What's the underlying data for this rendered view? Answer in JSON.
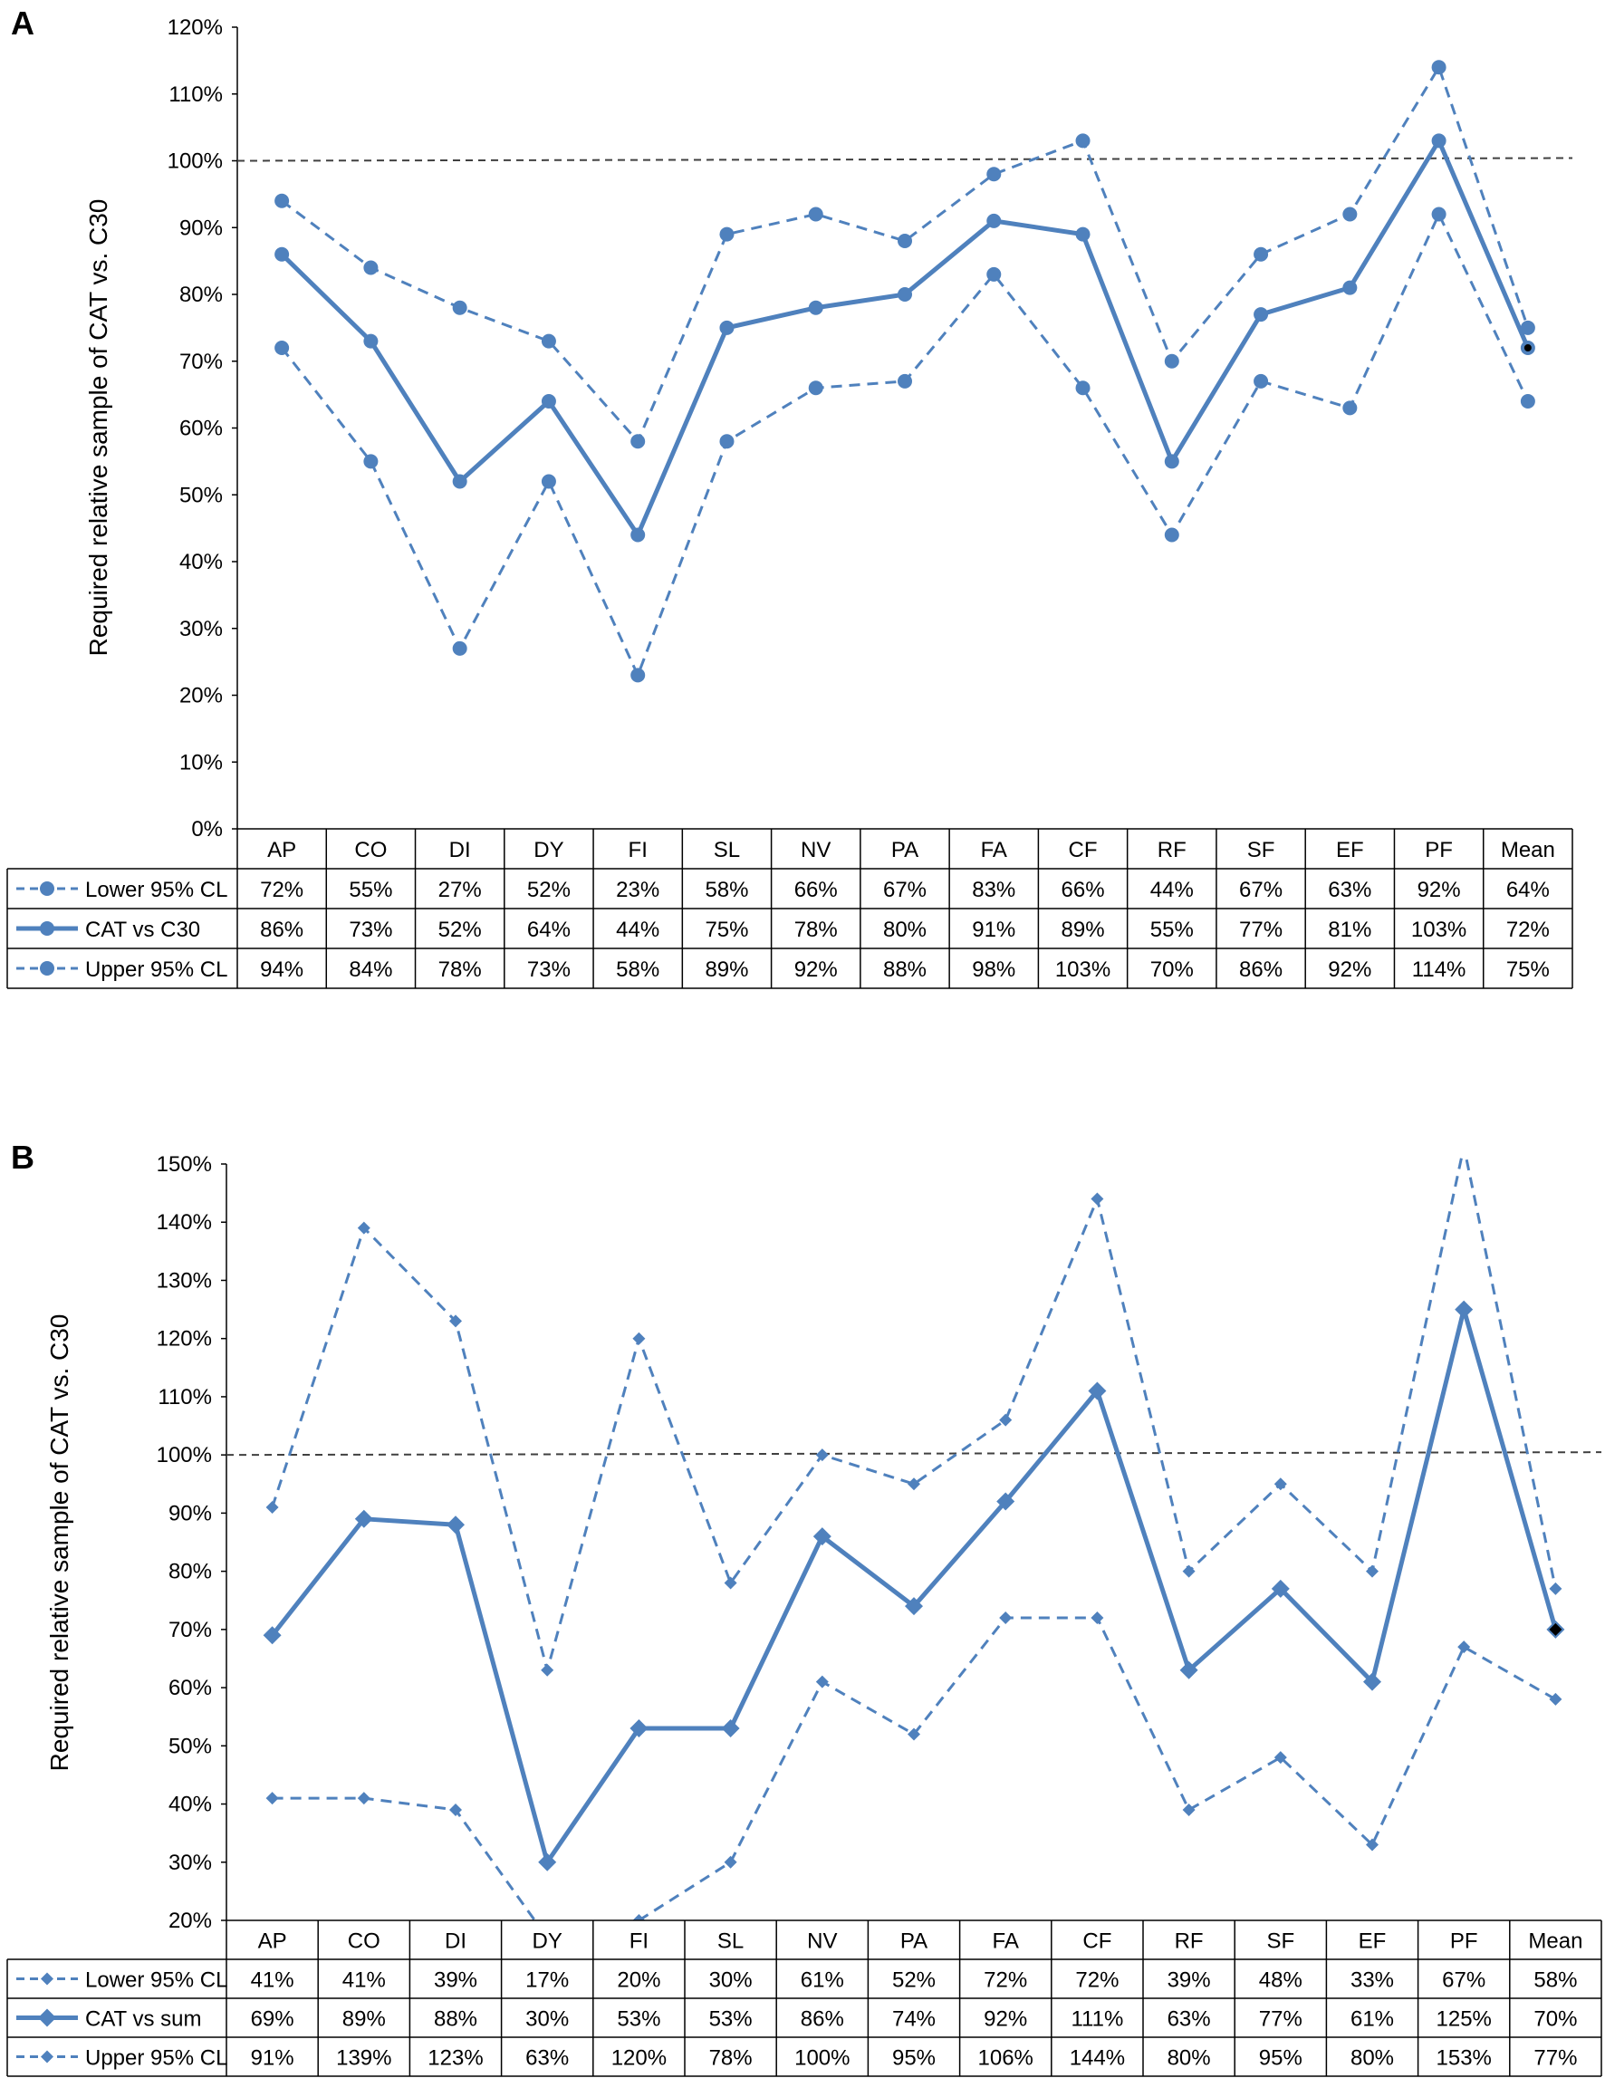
{
  "chart_data": [
    {
      "panel_label": "A",
      "type": "line",
      "ylabel": "Required relative sample of CAT vs. C30",
      "ylim": [
        0,
        120
      ],
      "yticks": [
        "0%",
        "10%",
        "20%",
        "30%",
        "40%",
        "50%",
        "60%",
        "70%",
        "80%",
        "90%",
        "100%",
        "110%",
        "120%"
      ],
      "reference_line": 100,
      "categories": [
        "AP",
        "CO",
        "DI",
        "DY",
        "FI",
        "SL",
        "NV",
        "PA",
        "FA",
        "CF",
        "RF",
        "SF",
        "EF",
        "PF",
        "Mean"
      ],
      "marker": "circle",
      "series": [
        {
          "name": "Lower 95% CL",
          "style": "dashed",
          "values": [
            72,
            55,
            27,
            52,
            23,
            58,
            66,
            67,
            83,
            66,
            44,
            67,
            63,
            92,
            64
          ],
          "labels": [
            "72%",
            "55%",
            "27%",
            "52%",
            "23%",
            "58%",
            "66%",
            "67%",
            "83%",
            "66%",
            "44%",
            "67%",
            "63%",
            "92%",
            "64%"
          ]
        },
        {
          "name": "CAT vs C30",
          "style": "solid",
          "values": [
            86,
            73,
            52,
            64,
            44,
            75,
            78,
            80,
            91,
            89,
            55,
            77,
            81,
            103,
            72
          ],
          "labels": [
            "86%",
            "73%",
            "52%",
            "64%",
            "44%",
            "75%",
            "78%",
            "80%",
            "91%",
            "89%",
            "55%",
            "77%",
            "81%",
            "103%",
            "72%"
          ]
        },
        {
          "name": "Upper 95% CL",
          "style": "dashed",
          "values": [
            94,
            84,
            78,
            73,
            58,
            89,
            92,
            88,
            98,
            103,
            70,
            86,
            92,
            114,
            75
          ],
          "labels": [
            "94%",
            "84%",
            "78%",
            "73%",
            "58%",
            "89%",
            "92%",
            "88%",
            "98%",
            "103%",
            "70%",
            "86%",
            "92%",
            "114%",
            "75%"
          ]
        }
      ]
    },
    {
      "panel_label": "B",
      "type": "line",
      "ylabel": "Required relative sample of CAT vs. C30",
      "ylim": [
        20,
        150
      ],
      "yticks": [
        "20%",
        "30%",
        "40%",
        "50%",
        "60%",
        "70%",
        "80%",
        "90%",
        "100%",
        "110%",
        "120%",
        "130%",
        "140%",
        "150%"
      ],
      "reference_line": 100,
      "categories": [
        "AP",
        "CO",
        "DI",
        "DY",
        "FI",
        "SL",
        "NV",
        "PA",
        "FA",
        "CF",
        "RF",
        "SF",
        "EF",
        "PF",
        "Mean"
      ],
      "marker": "diamond",
      "series": [
        {
          "name": "Lower 95% CL",
          "style": "dashed",
          "values": [
            41,
            41,
            39,
            17,
            20,
            30,
            61,
            52,
            72,
            72,
            39,
            48,
            33,
            67,
            58
          ],
          "labels": [
            "41%",
            "41%",
            "39%",
            "17%",
            "20%",
            "30%",
            "61%",
            "52%",
            "72%",
            "72%",
            "39%",
            "48%",
            "33%",
            "67%",
            "58%"
          ]
        },
        {
          "name": "CAT vs sum",
          "style": "solid",
          "values": [
            69,
            89,
            88,
            30,
            53,
            53,
            86,
            74,
            92,
            111,
            63,
            77,
            61,
            125,
            70
          ],
          "labels": [
            "69%",
            "89%",
            "88%",
            "30%",
            "53%",
            "53%",
            "86%",
            "74%",
            "92%",
            "111%",
            "63%",
            "77%",
            "61%",
            "125%",
            "70%"
          ]
        },
        {
          "name": "Upper 95% CL",
          "style": "dashed",
          "values": [
            91,
            139,
            123,
            63,
            120,
            78,
            100,
            95,
            106,
            144,
            80,
            95,
            80,
            153,
            77
          ],
          "labels": [
            "91%",
            "139%",
            "123%",
            "63%",
            "120%",
            "78%",
            "100%",
            "95%",
            "106%",
            "144%",
            "80%",
            "95%",
            "80%",
            "153%",
            "77%"
          ]
        }
      ]
    }
  ],
  "colors": {
    "series": "#4f81bd",
    "reference": "#404040",
    "mean_marker": "#000000"
  }
}
